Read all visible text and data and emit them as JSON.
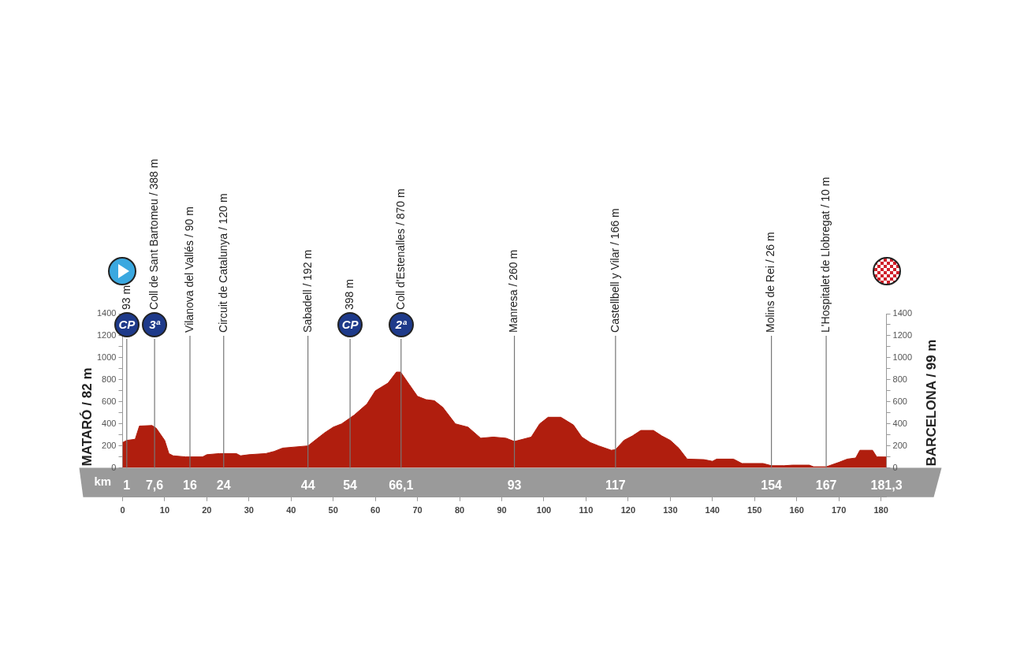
{
  "chart_data": {
    "type": "area",
    "ylabel": "MATARÓ / 82 m",
    "y2label": "BARCELONA / 99 m",
    "x2label": "km",
    "series": [
      {
        "color": "#b01e0e",
        "x": [
          0,
          1,
          3,
          4,
          7,
          8,
          10,
          11,
          12,
          15,
          19,
          20,
          23,
          27,
          28,
          30,
          34,
          36,
          38,
          44,
          46,
          48,
          50,
          52,
          55,
          58,
          60,
          63,
          65,
          66,
          68,
          70,
          72,
          74,
          76,
          79,
          82,
          85,
          88,
          91,
          93,
          95,
          97,
          99,
          101,
          104,
          107,
          109,
          111,
          113,
          116,
          117,
          119,
          121,
          123,
          126,
          128,
          130,
          132,
          134,
          138,
          140,
          141,
          145,
          147,
          152,
          154,
          157,
          159,
          163,
          164,
          167,
          170,
          172,
          174,
          175,
          178,
          179,
          181.3
        ],
        "values": [
          230,
          250,
          260,
          380,
          385,
          360,
          250,
          130,
          110,
          100,
          100,
          120,
          130,
          130,
          110,
          120,
          130,
          150,
          180,
          200,
          260,
          320,
          370,
          400,
          480,
          580,
          700,
          770,
          870,
          870,
          760,
          650,
          620,
          610,
          550,
          400,
          370,
          270,
          280,
          270,
          240,
          260,
          280,
          400,
          460,
          460,
          390,
          280,
          230,
          200,
          160,
          166,
          250,
          290,
          340,
          340,
          290,
          250,
          180,
          80,
          75,
          60,
          80,
          80,
          40,
          40,
          20,
          20,
          25,
          25,
          10,
          10,
          50,
          80,
          90,
          160,
          160,
          100,
          99
        ]
      }
    ],
    "xlim": [
      0,
      181.3
    ],
    "xticks": [
      0,
      10,
      20,
      30,
      40,
      50,
      60,
      70,
      80,
      90,
      100,
      110,
      120,
      130,
      140,
      150,
      160,
      170,
      180
    ],
    "x2lim": [
      0,
      181.3
    ],
    "x2ticks": [
      {
        "value": 1,
        "label": "1"
      },
      {
        "value": 7.6,
        "label": "7,6"
      },
      {
        "value": 16,
        "label": "16"
      },
      {
        "value": 24,
        "label": "24"
      },
      {
        "value": 44,
        "label": "44"
      },
      {
        "value": 54,
        "label": "54"
      },
      {
        "value": 66.1,
        "label": "66,1"
      },
      {
        "value": 93,
        "label": "93"
      },
      {
        "value": 117,
        "label": "117"
      },
      {
        "value": 154,
        "label": "154"
      },
      {
        "value": 167,
        "label": "167"
      },
      {
        "value": 181.3,
        "label": "181,3"
      }
    ],
    "ylim": [
      0,
      1400
    ],
    "yticks": [
      0,
      {
        "value": 100,
        "label": null
      },
      200,
      {
        "value": 300,
        "label": null
      },
      400,
      {
        "value": 500,
        "label": null
      },
      600,
      {
        "value": 700,
        "label": null
      },
      800,
      {
        "value": 900,
        "label": null
      },
      1000,
      {
        "value": 1100,
        "label": null
      },
      1200,
      {
        "value": 1300,
        "label": null
      },
      1400
    ],
    "y2lim": [
      0,
      1400
    ],
    "y2ticks": [
      0,
      {
        "value": 100,
        "label": null
      },
      200,
      {
        "value": 300,
        "label": null
      },
      400,
      {
        "value": 500,
        "label": null
      },
      600,
      {
        "value": 700,
        "label": null
      },
      800,
      {
        "value": 900,
        "label": null
      },
      1000,
      {
        "value": 1100,
        "label": null
      },
      1200,
      {
        "value": 1300,
        "label": null
      },
      1400
    ],
    "grid": false,
    "ref_lines": [
      {
        "axis": "x",
        "value": 1,
        "label": "93 m"
      },
      {
        "axis": "x",
        "value": 7.6,
        "label": "Coll de Sant Bartomeu / 388 m"
      },
      {
        "axis": "x",
        "value": 16,
        "label": "Vilanova del Vallés / 90 m"
      },
      {
        "axis": "x",
        "value": 24,
        "label": "Circuit de Catalunya / 120 m"
      },
      {
        "axis": "x",
        "value": 44,
        "label": "Sabadell / 192 m"
      },
      {
        "axis": "x",
        "value": 54,
        "label": "398 m"
      },
      {
        "axis": "x",
        "value": 66.1,
        "label": "Coll d'Estenalles / 870 m"
      },
      {
        "axis": "x",
        "value": 93,
        "label": "Manresa / 260 m"
      },
      {
        "axis": "x",
        "value": 117,
        "label": "Castellbell y Vilar / 166 m"
      },
      {
        "axis": "x",
        "value": 154,
        "label": "Molins de Rei / 26 m"
      },
      {
        "axis": "x",
        "value": 167,
        "label": "L'Hospitalet de Llobregat / 10 m"
      }
    ],
    "annotations": [
      {
        "text": "CP",
        "x": 1,
        "y": 1300
      },
      {
        "text": "3ª",
        "x": 7.6,
        "y": 1300
      },
      {
        "text": "CP",
        "x": 54,
        "y": 1300
      },
      {
        "text": "2ª",
        "x": 66.1,
        "y": 1300
      }
    ]
  }
}
